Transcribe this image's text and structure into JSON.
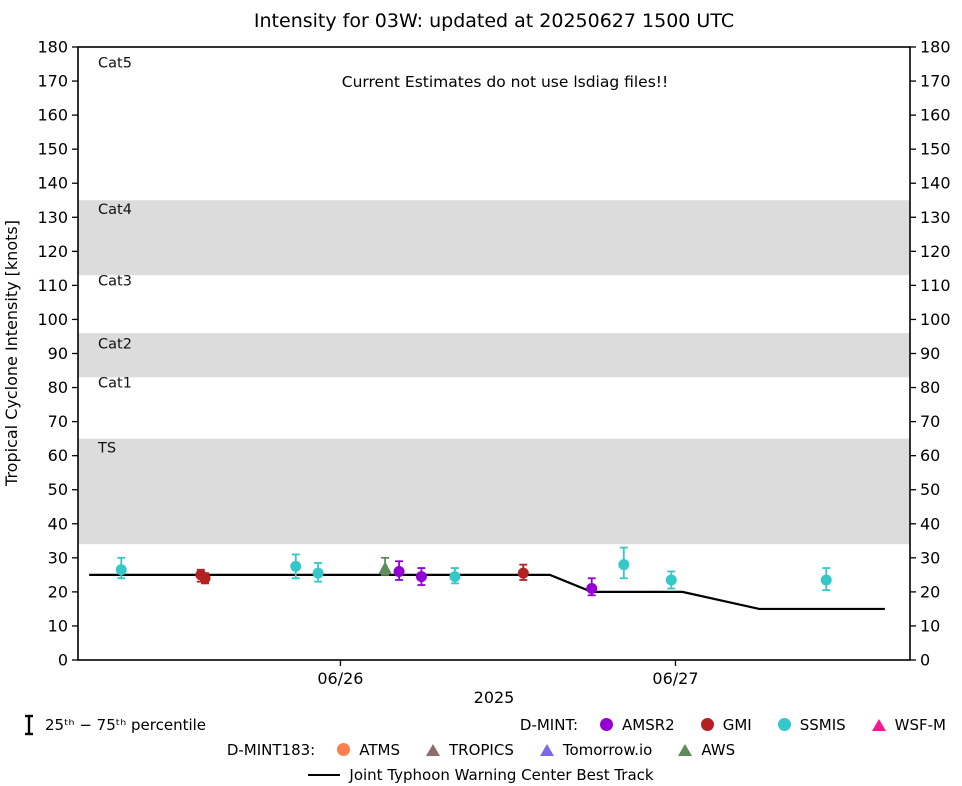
{
  "chart_data": {
    "type": "scatter",
    "title": "Intensity for 03W: updated at 20250627 1500 UTC",
    "annotation": "Current Estimates do not use lsdiag files!!",
    "xlabel": "2025",
    "ylabel": "Tropical Cyclone Intensity [knots]",
    "xlim": [
      5.2,
      64.8
    ],
    "ylim": [
      0,
      180
    ],
    "grid": false,
    "legend_position": "bottom",
    "colors": {
      "band": "#DCDCDC",
      "axis": "#000000"
    },
    "yticks": [
      0,
      10,
      20,
      30,
      40,
      50,
      60,
      70,
      80,
      90,
      100,
      110,
      120,
      130,
      140,
      150,
      160,
      170,
      180
    ],
    "xticks": [
      {
        "t": 24,
        "label": "06/26"
      },
      {
        "t": 48,
        "label": "06/27"
      }
    ],
    "bands": [
      {
        "label": "TS",
        "from": 34,
        "to": 65,
        "shaded": true,
        "label_v": 61
      },
      {
        "label": "Cat1",
        "from": 65,
        "to": 83,
        "shaded": false,
        "label_v": 80
      },
      {
        "label": "Cat2",
        "from": 83,
        "to": 96,
        "shaded": true,
        "label_v": 91.5
      },
      {
        "label": "Cat3",
        "from": 96,
        "to": 113,
        "shaded": false,
        "label_v": 110
      },
      {
        "label": "Cat4",
        "from": 113,
        "to": 135,
        "shaded": true,
        "label_v": 131
      },
      {
        "label": "Cat5",
        "from": 135,
        "to": 180,
        "shaded": false,
        "label_v": 174
      }
    ],
    "series": [
      {
        "name": "SSMIS",
        "color": "#35C8C8",
        "marker": "circle",
        "points": [
          {
            "t": 8.3,
            "v": 26.5,
            "lo": 24,
            "hi": 30
          },
          {
            "t": 20.8,
            "v": 27.5,
            "lo": 24,
            "hi": 31
          },
          {
            "t": 22.4,
            "v": 25.5,
            "lo": 23,
            "hi": 28.5
          },
          {
            "t": 32.2,
            "v": 24.5,
            "lo": 22.5,
            "hi": 27
          },
          {
            "t": 44.3,
            "v": 28,
            "lo": 24,
            "hi": 33
          },
          {
            "t": 47.7,
            "v": 23.5,
            "lo": 21,
            "hi": 26
          },
          {
            "t": 58.8,
            "v": 23.5,
            "lo": 20.5,
            "hi": 27
          }
        ]
      },
      {
        "name": "GMI",
        "color": "#B22222",
        "marker": "circle",
        "points": [
          {
            "t": 14.0,
            "v": 25,
            "lo": 23,
            "hi": 26.5
          },
          {
            "t": 14.3,
            "v": 24,
            "lo": 22.5,
            "hi": 25.5
          },
          {
            "t": 37.1,
            "v": 25.5,
            "lo": 23.5,
            "hi": 28
          }
        ]
      },
      {
        "name": "AMSR2",
        "color": "#9400D3",
        "marker": "circle",
        "points": [
          {
            "t": 28.2,
            "v": 26,
            "lo": 23.5,
            "hi": 29
          },
          {
            "t": 29.8,
            "v": 24.5,
            "lo": 22,
            "hi": 27
          },
          {
            "t": 42.0,
            "v": 21,
            "lo": 19,
            "hi": 24
          }
        ]
      },
      {
        "name": "AWS",
        "color": "#5B8C5A",
        "marker": "triangle",
        "points": [
          {
            "t": 27.2,
            "v": 27,
            "lo": 25,
            "hi": 30
          }
        ]
      }
    ],
    "best_track": {
      "name": "Joint Typhoon Warning Center Best Track",
      "color": "#000000",
      "points": [
        {
          "t": 6,
          "v": 25
        },
        {
          "t": 39,
          "v": 25
        },
        {
          "t": 42,
          "v": 20
        },
        {
          "t": 48.5,
          "v": 20
        },
        {
          "t": 54,
          "v": 15
        },
        {
          "t": 63,
          "v": 15
        }
      ]
    }
  },
  "legend": {
    "percentile_label": "25ᵗʰ − 75ᵗʰ percentile",
    "groups": [
      {
        "label": "D-MINT:",
        "items": [
          {
            "name": "AMSR2",
            "color": "#9400D3",
            "marker": "circle"
          },
          {
            "name": "GMI",
            "color": "#B22222",
            "marker": "circle"
          },
          {
            "name": "SSMIS",
            "color": "#35C8C8",
            "marker": "circle"
          },
          {
            "name": "WSF-M",
            "color": "#FF1493",
            "marker": "triangle"
          }
        ]
      },
      {
        "label": "D-MINT183:",
        "items": [
          {
            "name": "ATMS",
            "color": "#FF7F50",
            "marker": "circle"
          },
          {
            "name": "TROPICS",
            "color": "#8D6E6E",
            "marker": "triangle"
          },
          {
            "name": "Tomorrow.io",
            "color": "#7B68EE",
            "marker": "triangle"
          },
          {
            "name": "AWS",
            "color": "#5B8C5A",
            "marker": "triangle"
          }
        ]
      },
      {
        "label": "",
        "items": [
          {
            "name": "Joint Typhoon Warning Center Best Track",
            "color": "#000000",
            "marker": "line"
          }
        ]
      }
    ]
  }
}
